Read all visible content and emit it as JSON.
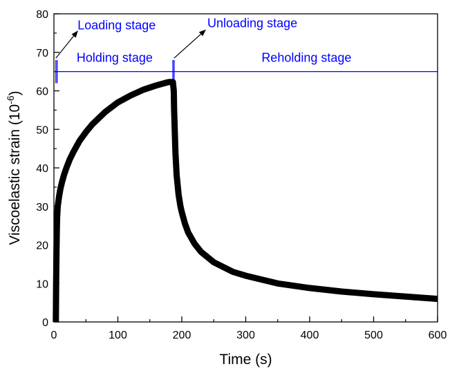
{
  "chart_data": {
    "type": "line",
    "title": "",
    "xlabel": "Time (s)",
    "ylabel_main": "Viscoelastic strain (10",
    "ylabel_sup": "-6",
    "ylabel_close": ")",
    "xlim": [
      0,
      600
    ],
    "ylim": [
      0,
      80
    ],
    "xticks": [
      0,
      100,
      200,
      300,
      400,
      500,
      600
    ],
    "yticks": [
      0,
      10,
      20,
      30,
      40,
      50,
      60,
      70,
      80
    ],
    "xticks_minor_step": 50,
    "yticks_minor_step": 5,
    "grid": false,
    "series": [
      {
        "color": "#000000",
        "x": [
          3,
          3.5,
          4,
          4.5,
          5,
          6,
          8,
          10,
          13,
          16,
          20,
          25,
          30,
          40,
          50,
          60,
          80,
          100,
          120,
          140,
          160,
          175,
          180,
          183,
          186,
          187.5,
          188,
          190,
          192,
          195,
          198,
          200,
          205,
          210,
          220,
          230,
          250,
          280,
          300,
          350,
          400,
          450,
          500,
          550,
          600
        ],
        "y": [
          0,
          10,
          18,
          24,
          27,
          30,
          32.5,
          34.5,
          36.5,
          38.3,
          40.2,
          42.3,
          44,
          47,
          49.3,
          51.3,
          54.5,
          57,
          58.8,
          60.3,
          61.4,
          62.1,
          62.3,
          62.3,
          62.3,
          60,
          55,
          44,
          38,
          33,
          30,
          28.5,
          25.5,
          23.2,
          20.3,
          18.2,
          15.5,
          13,
          12,
          10,
          8.8,
          7.9,
          7.2,
          6.6,
          6
        ]
      }
    ],
    "reference_line": {
      "y": 65,
      "color": "#0000ff"
    },
    "stage_markers": [
      {
        "x": 3,
        "y_from": 62,
        "y_to": 68
      },
      {
        "x": 5,
        "y_from": 62,
        "y_to": 68
      },
      {
        "x": 186,
        "y_from": 62,
        "y_to": 68
      },
      {
        "x": 188,
        "y_from": 62,
        "y_to": 68
      }
    ],
    "annotations": [
      {
        "text": "Loading stage",
        "x": 37,
        "y": 76,
        "color": "#0000ff",
        "anchor": "start"
      },
      {
        "text": "Holding stage",
        "x": 95,
        "y": 67.5,
        "color": "#0000ff",
        "anchor": "middle"
      },
      {
        "text": "Unloading stage",
        "x": 240,
        "y": 76.5,
        "color": "#0000ff",
        "anchor": "start"
      },
      {
        "text": "Reholding stage",
        "x": 395,
        "y": 67.5,
        "color": "#0000ff",
        "anchor": "middle"
      }
    ],
    "arrows": [
      {
        "from": [
          3,
          68.5
        ],
        "to": [
          37,
          75.5
        ],
        "color": "#000000"
      },
      {
        "from": [
          188,
          68.5
        ],
        "to": [
          237,
          75.8
        ],
        "color": "#000000"
      }
    ]
  }
}
